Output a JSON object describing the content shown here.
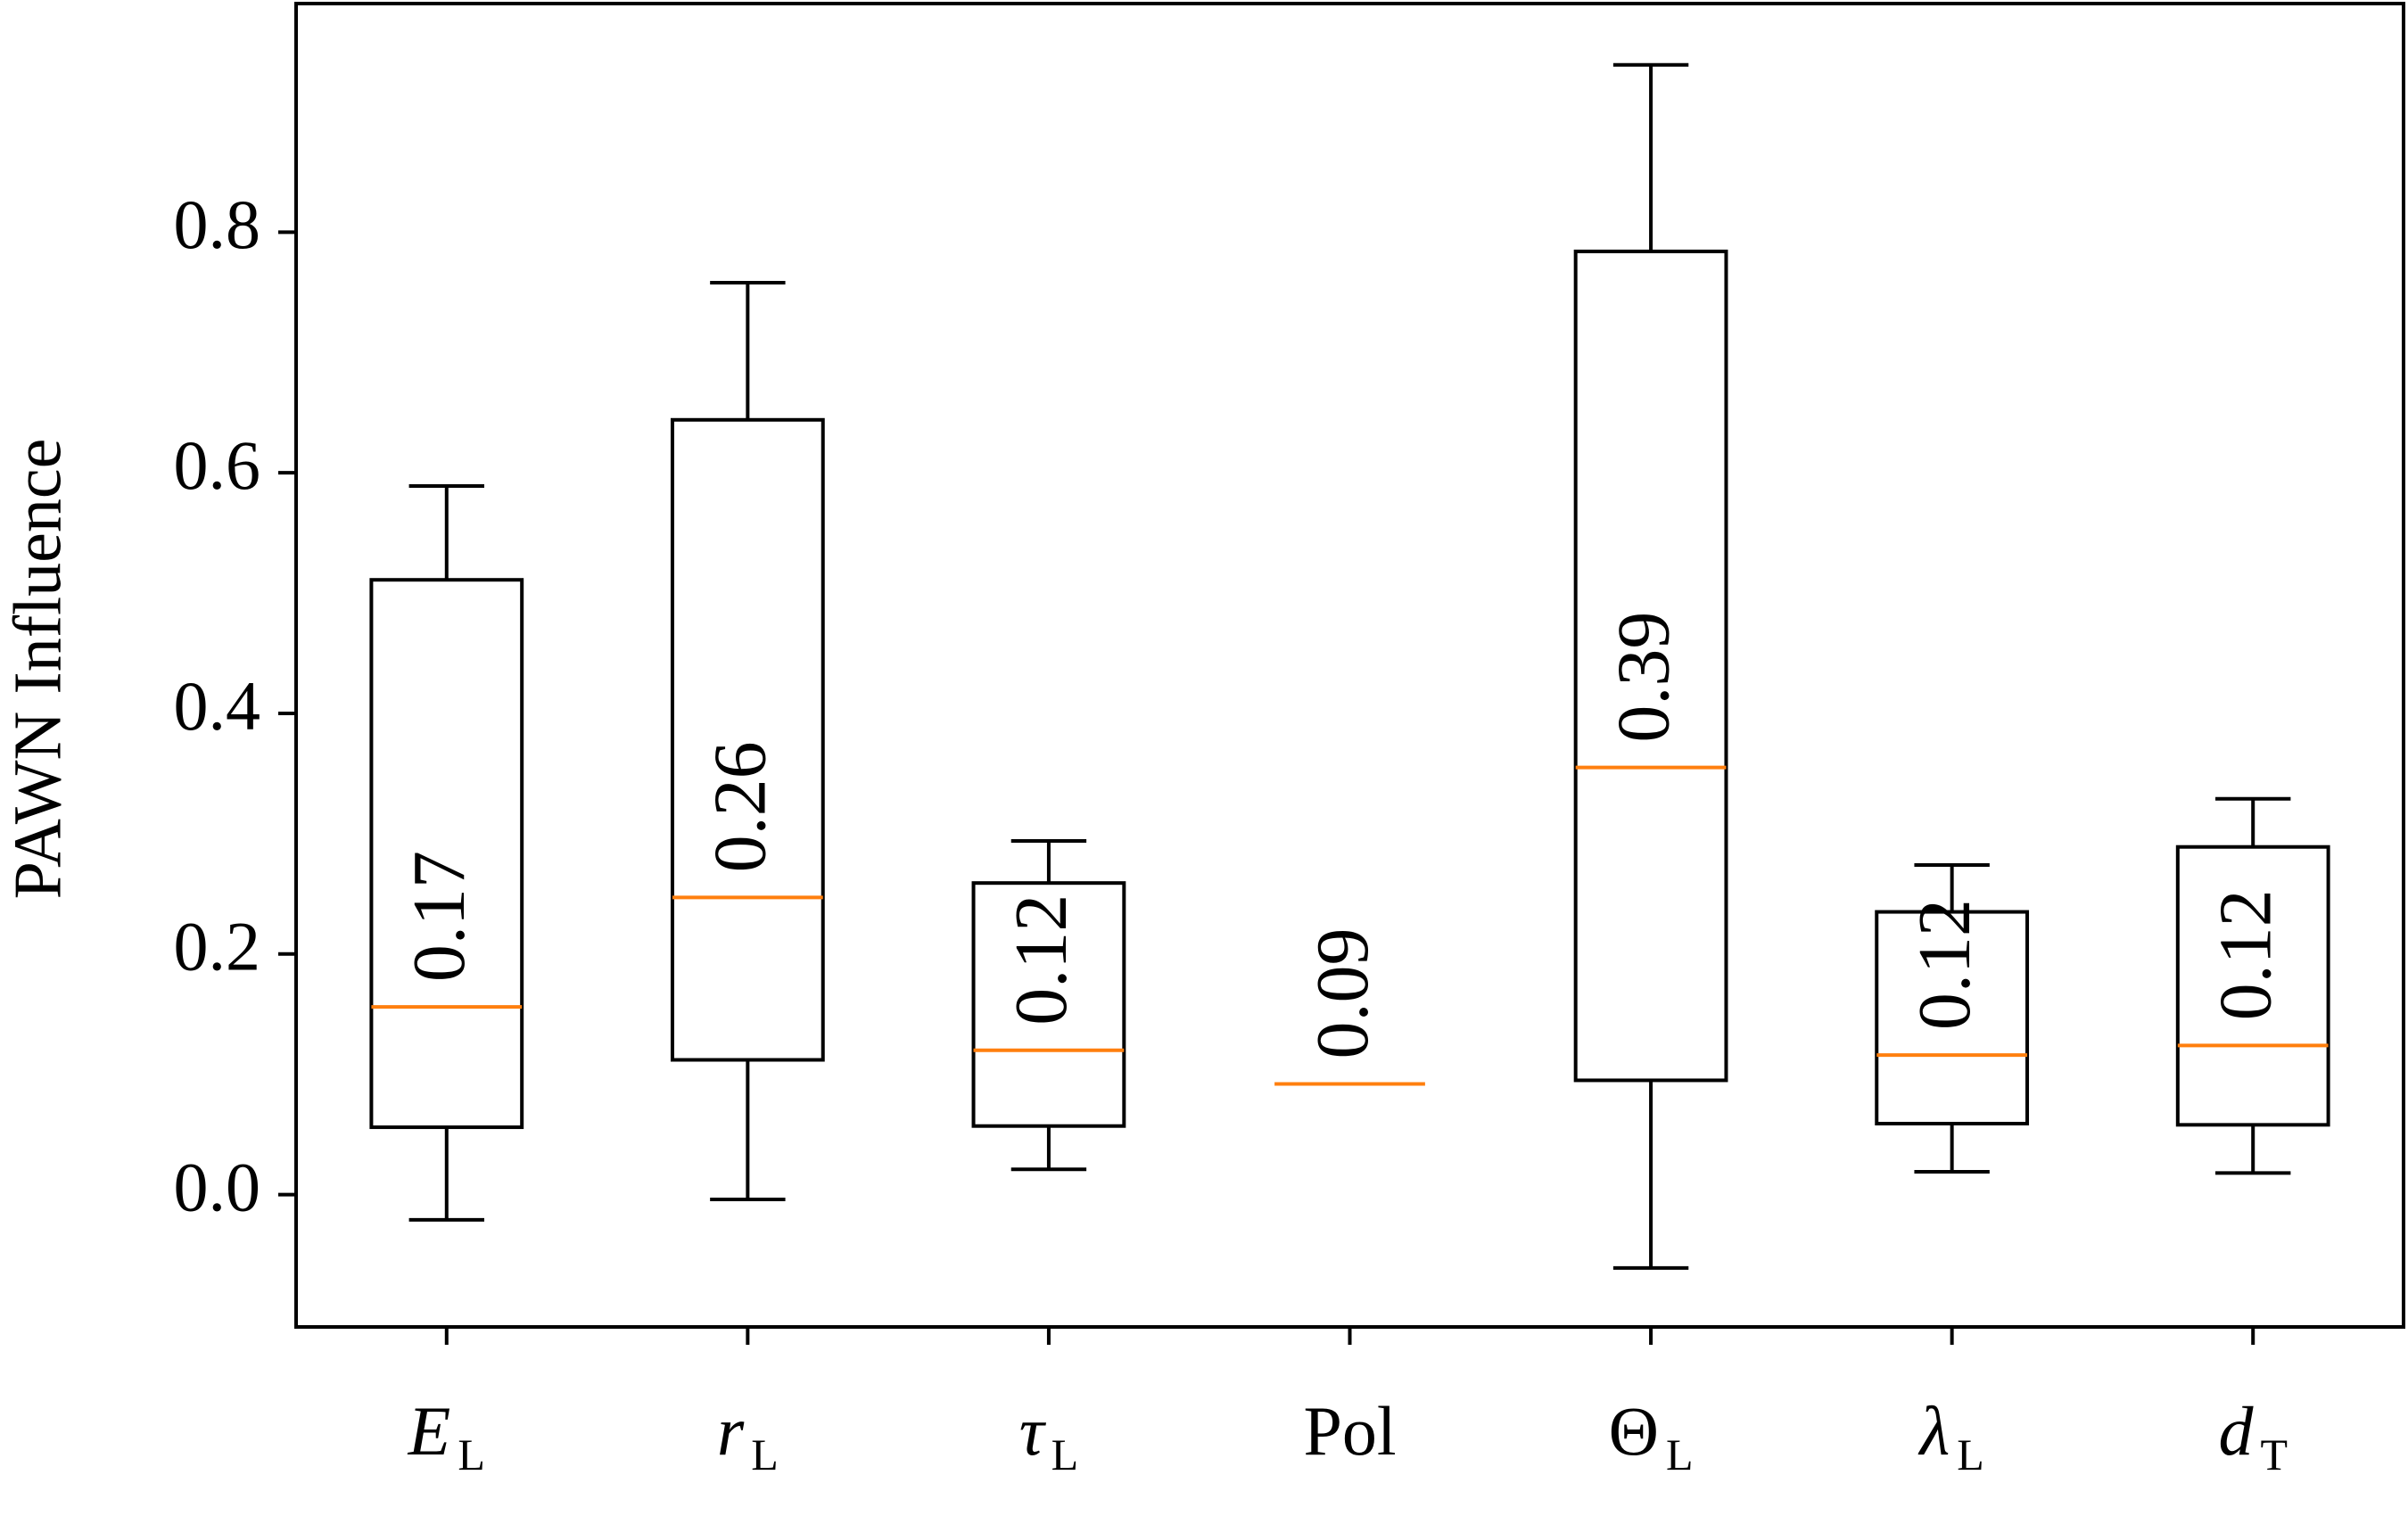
{
  "chart_data": {
    "type": "box",
    "y_label": "PAWN Influence",
    "categories": [
      {
        "base": "E",
        "sub": "L",
        "italic": true
      },
      {
        "base": "r",
        "sub": "L",
        "italic": true
      },
      {
        "base": "τ",
        "sub": "L",
        "italic": true
      },
      {
        "base": "Pol",
        "italic": false
      },
      {
        "base": "Θ",
        "sub": "L",
        "italic": false
      },
      {
        "base": "λ",
        "sub": "L",
        "italic": true
      },
      {
        "base": "d",
        "sub": "T",
        "italic": true
      }
    ],
    "whislo": [
      -0.021,
      -0.004,
      0.021,
      0.092,
      -0.061,
      0.019,
      0.018
    ],
    "q1": [
      0.056,
      0.112,
      0.057,
      0.092,
      0.095,
      0.059,
      0.058
    ],
    "med": [
      0.156,
      0.247,
      0.12,
      0.092,
      0.355,
      0.116,
      0.124
    ],
    "q3": [
      0.511,
      0.644,
      0.259,
      0.092,
      0.784,
      0.235,
      0.289
    ],
    "whishi": [
      0.589,
      0.758,
      0.294,
      0.092,
      0.939,
      0.274,
      0.329
    ],
    "annotations": [
      "0.17",
      "0.26",
      "0.12",
      "0.09",
      "0.39",
      "0.12",
      "0.12"
    ],
    "box_color": "#000000",
    "median_color": "#ff7f0e",
    "ylim": [
      -0.11,
      0.99
    ],
    "yticks": [
      {
        "value": 0,
        "label": "0.0"
      },
      0.2,
      0.4,
      0.6,
      0.8
    ]
  }
}
